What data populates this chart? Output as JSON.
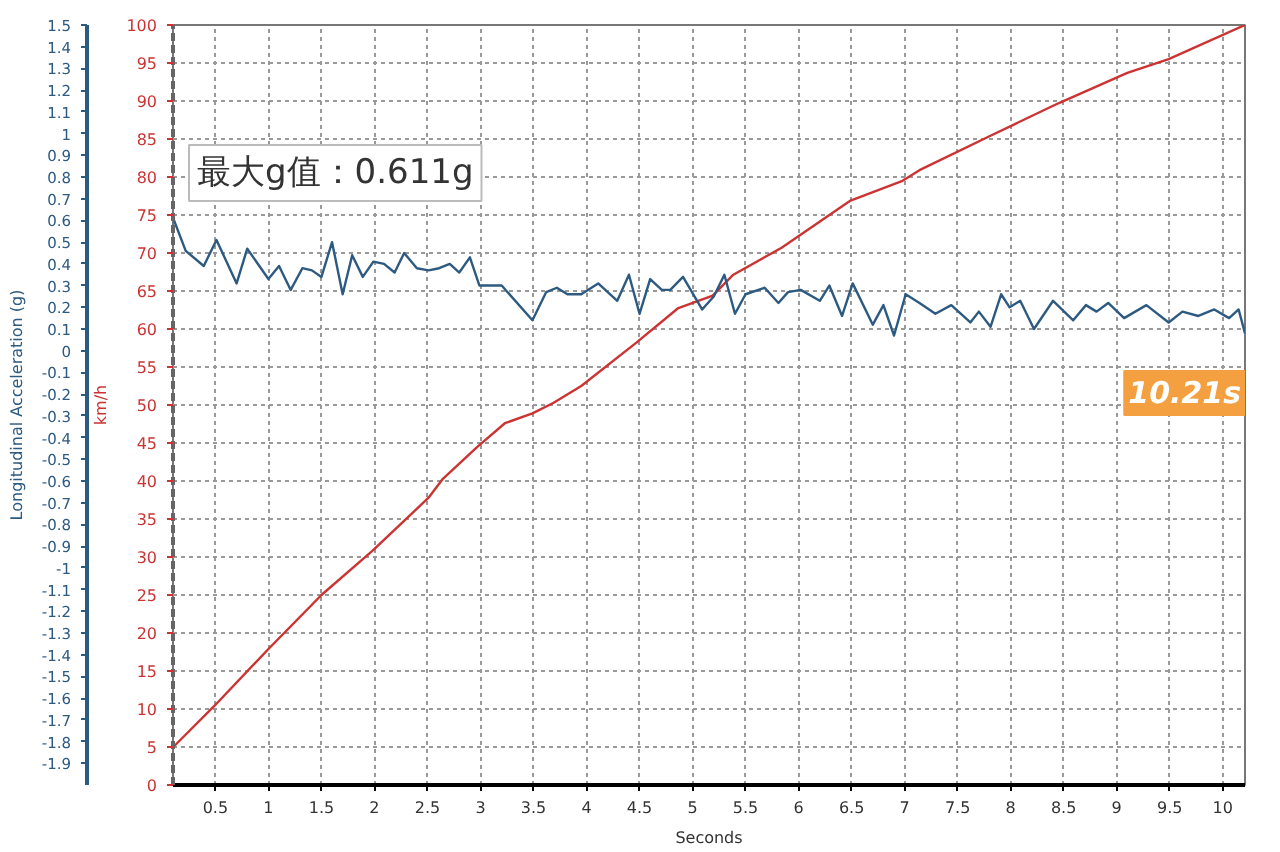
{
  "chart_data": {
    "type": "line",
    "xlabel": "Seconds",
    "ylabel": "km/h",
    "y2label": "Longitudinal Acceleration (g)",
    "xlim": [
      0.1,
      10.21
    ],
    "xticks": [
      0.5,
      1,
      1.5,
      2,
      2.5,
      3,
      3.5,
      4,
      4.5,
      5,
      5.5,
      6,
      6.5,
      7,
      7.5,
      8,
      8.5,
      9,
      9.5,
      10
    ],
    "ylim": [
      0,
      100
    ],
    "yticks": [
      0,
      5,
      10,
      15,
      20,
      25,
      30,
      35,
      40,
      45,
      50,
      55,
      60,
      65,
      70,
      75,
      80,
      85,
      90,
      95,
      100
    ],
    "y2lim": [
      -2,
      1.5
    ],
    "y2ticks": [
      -1.9,
      -1.8,
      -1.7,
      -1.6,
      -1.5,
      -1.4,
      -1.3,
      -1.2,
      -1.1,
      -1,
      -0.9,
      -0.8,
      -0.7,
      -0.6,
      -0.5,
      -0.4,
      -0.3,
      -0.2,
      -0.1,
      0,
      0.1,
      0.2,
      0.3,
      0.4,
      0.5,
      0.6,
      0.7,
      0.8,
      0.9,
      1,
      1.1,
      1.2,
      1.3,
      1.4,
      1.5
    ],
    "grid": true,
    "line_style": "solid",
    "annotations": [
      "最大g值：0.611g",
      "10.21s"
    ],
    "series": [
      {
        "color": "#cc3333",
        "x": [
          0.11,
          0.49,
          1.0,
          1.5,
          1.98,
          2.51,
          2.64,
          2.97,
          3.23,
          3.49,
          3.69,
          3.95,
          4.47,
          4.86,
          5.19,
          5.38,
          5.84,
          6.49,
          6.98,
          7.14,
          7.79,
          8.45,
          9.1,
          9.49,
          10.21
        ],
        "values": [
          5.1,
          10.4,
          17.9,
          25,
          30.8,
          37.8,
          40.2,
          44.5,
          47.6,
          48.9,
          50.3,
          52.5,
          58.2,
          62.7,
          64.4,
          67.1,
          70.7,
          76.9,
          79.5,
          80.9,
          85.3,
          89.7,
          93.7,
          95.5,
          100
        ]
      },
      {
        "color": "#2d5a80",
        "axis": "y2",
        "x": [
          0.11,
          0.22,
          0.39,
          0.51,
          0.7,
          0.8,
          1.0,
          1.1,
          1.21,
          1.32,
          1.41,
          1.5,
          1.6,
          1.7,
          1.79,
          1.89,
          1.99,
          2.09,
          2.19,
          2.28,
          2.4,
          2.51,
          2.61,
          2.71,
          2.8,
          2.9,
          2.99,
          3.1,
          3.2,
          3.49,
          3.62,
          3.72,
          3.82,
          3.95,
          4.11,
          4.29,
          4.4,
          4.5,
          4.6,
          4.71,
          4.79,
          4.91,
          5.09,
          5.2,
          5.3,
          5.4,
          5.5,
          5.68,
          5.81,
          5.9,
          6.02,
          6.2,
          6.29,
          6.41,
          6.51,
          6.7,
          6.8,
          6.9,
          7.01,
          7.14,
          7.29,
          7.44,
          7.62,
          7.7,
          7.81,
          7.91,
          7.99,
          8.09,
          8.22,
          8.4,
          8.59,
          8.71,
          8.81,
          8.92,
          9.07,
          9.28,
          9.49,
          9.62,
          9.77,
          9.92,
          10.06,
          10.15,
          10.21
        ],
        "values": [
          0.6,
          0.46,
          0.39,
          0.51,
          0.31,
          0.47,
          0.33,
          0.39,
          0.28,
          0.38,
          0.37,
          0.34,
          0.5,
          0.26,
          0.44,
          0.34,
          0.41,
          0.4,
          0.36,
          0.45,
          0.38,
          0.37,
          0.38,
          0.4,
          0.36,
          0.43,
          0.3,
          0.3,
          0.3,
          0.14,
          0.27,
          0.29,
          0.26,
          0.26,
          0.31,
          0.23,
          0.35,
          0.17,
          0.33,
          0.28,
          0.28,
          0.34,
          0.19,
          0.25,
          0.35,
          0.17,
          0.26,
          0.29,
          0.22,
          0.27,
          0.28,
          0.23,
          0.3,
          0.16,
          0.31,
          0.12,
          0.21,
          0.07,
          0.26,
          0.22,
          0.17,
          0.21,
          0.13,
          0.18,
          0.11,
          0.26,
          0.2,
          0.23,
          0.1,
          0.23,
          0.14,
          0.21,
          0.18,
          0.22,
          0.15,
          0.21,
          0.13,
          0.18,
          0.16,
          0.19,
          0.15,
          0.19,
          0.08
        ]
      }
    ]
  }
}
